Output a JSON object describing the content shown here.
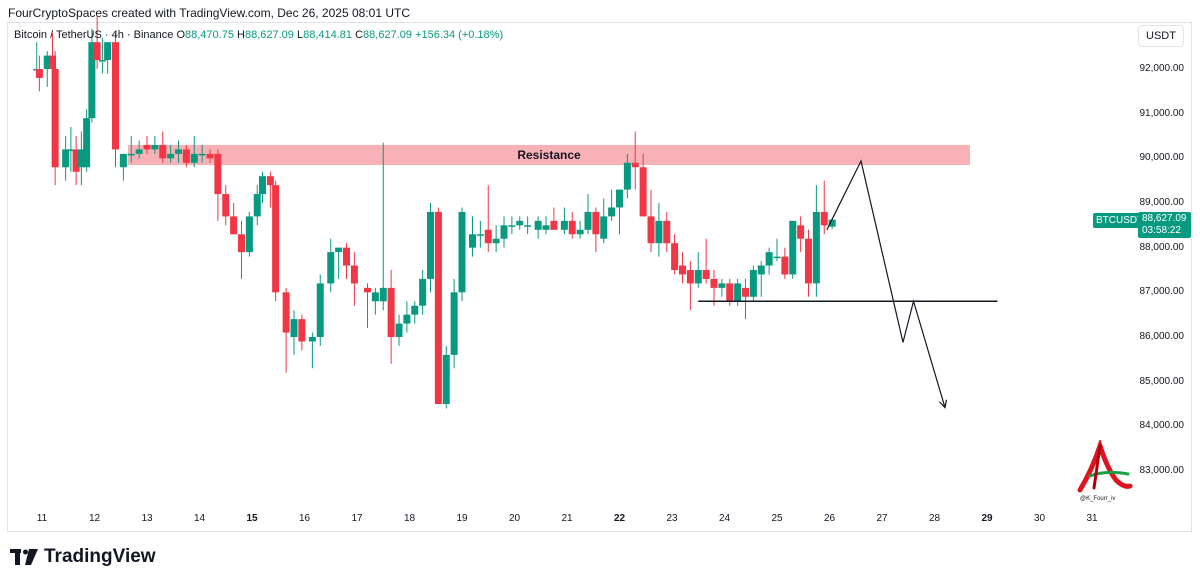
{
  "header": "FourCryptoSpaces created with TradingView.com, Dec 26, 2025 08:01 UTC",
  "legend": {
    "symbol": "Bitcoin / TetherUS · 4h · Binance",
    "open_label": "O",
    "open": "88,470.75",
    "high_label": "H",
    "high": "88,627.09",
    "low_label": "L",
    "low": "88,414.81",
    "close_label": "C",
    "close": "88,627.09",
    "change": "+156.34 (+0.18%)"
  },
  "currency": "USDT",
  "price_tag": {
    "symbol": "BTCUSDT",
    "price": "88,627.09",
    "countdown": "03:58:22"
  },
  "logo_text": "TradingView",
  "watermark_text": "@K_Fourr_iv",
  "colors": {
    "up": "#089981",
    "down": "#f23645",
    "resistance": "#f7a5aa",
    "background": "#ffffff"
  },
  "chart_data": {
    "type": "candlestick",
    "timeframe": "4h",
    "x_tick_labels": [
      "11",
      "12",
      "13",
      "14",
      "15",
      "16",
      "17",
      "18",
      "19",
      "20",
      "21",
      "22",
      "23",
      "24",
      "25",
      "26",
      "27",
      "28",
      "29",
      "30",
      "31"
    ],
    "bold_x_ticks": [
      "15",
      "22",
      "29"
    ],
    "y_tick_labels": [
      "92,000.00",
      "91,000.00",
      "90,000.00",
      "89,000.00",
      "88,000.00",
      "87,000.00",
      "86,000.00",
      "85,000.00",
      "84,000.00",
      "83,000.00"
    ],
    "y_range": [
      82400,
      93200
    ],
    "annotations": {
      "resistance_label": "Resistance",
      "resistance_zone": {
        "from": 89850,
        "to": 90300
      },
      "support_level": 86800,
      "projected_path": [
        [
          26.6,
          89940
        ],
        [
          27.4,
          85880
        ],
        [
          27.6,
          86800
        ],
        [
          28.2,
          84420
        ]
      ]
    },
    "candles": [
      {
        "d": 10.9,
        "o": 92000,
        "h": 92600,
        "l": 91900,
        "c": 92000
      },
      {
        "d": 10.95,
        "o": 92000,
        "h": 92300,
        "l": 91500,
        "c": 91800
      },
      {
        "d": 11.1,
        "o": 92000,
        "h": 92400,
        "l": 91600,
        "c": 92300
      },
      {
        "d": 11.2,
        "o": 92300,
        "h": 92800,
        "l": 91800,
        "c": 92000
      },
      {
        "d": 11.25,
        "o": 92000,
        "h": 92400,
        "l": 89400,
        "c": 89800
      },
      {
        "d": 11.45,
        "o": 89800,
        "h": 90500,
        "l": 89500,
        "c": 90200
      },
      {
        "d": 11.55,
        "o": 90200,
        "h": 90700,
        "l": 89700,
        "c": 90200
      },
      {
        "d": 11.65,
        "o": 90200,
        "h": 90500,
        "l": 89400,
        "c": 89700
      },
      {
        "d": 11.75,
        "o": 89800,
        "h": 90600,
        "l": 89400,
        "c": 90200
      },
      {
        "d": 11.85,
        "o": 89800,
        "h": 91100,
        "l": 89700,
        "c": 90900
      },
      {
        "d": 11.95,
        "o": 90900,
        "h": 92900,
        "l": 90800,
        "c": 92600
      },
      {
        "d": 12.05,
        "o": 92600,
        "h": 93200,
        "l": 92000,
        "c": 92200
      },
      {
        "d": 12.15,
        "o": 92200,
        "h": 92700,
        "l": 91900,
        "c": 92200
      },
      {
        "d": 12.25,
        "o": 92200,
        "h": 92600,
        "l": 91900,
        "c": 92600
      },
      {
        "d": 12.4,
        "o": 92600,
        "h": 92800,
        "l": 89800,
        "c": 90200
      },
      {
        "d": 12.55,
        "o": 89800,
        "h": 90100,
        "l": 89500,
        "c": 90100
      },
      {
        "d": 12.7,
        "o": 90100,
        "h": 90500,
        "l": 89900,
        "c": 90100
      },
      {
        "d": 12.85,
        "o": 90100,
        "h": 90400,
        "l": 90000,
        "c": 90200
      },
      {
        "d": 13.0,
        "o": 90300,
        "h": 90500,
        "l": 90100,
        "c": 90200
      },
      {
        "d": 13.15,
        "o": 90200,
        "h": 90500,
        "l": 90100,
        "c": 90300
      },
      {
        "d": 13.3,
        "o": 90300,
        "h": 90600,
        "l": 89900,
        "c": 90000
      },
      {
        "d": 13.45,
        "o": 90000,
        "h": 90300,
        "l": 89900,
        "c": 90100
      },
      {
        "d": 13.6,
        "o": 90100,
        "h": 90400,
        "l": 89900,
        "c": 90200
      },
      {
        "d": 13.75,
        "o": 90200,
        "h": 90300,
        "l": 89800,
        "c": 89900
      },
      {
        "d": 13.9,
        "o": 89900,
        "h": 90500,
        "l": 89800,
        "c": 90100
      },
      {
        "d": 14.05,
        "o": 90100,
        "h": 90300,
        "l": 89900,
        "c": 90100
      },
      {
        "d": 14.2,
        "o": 90100,
        "h": 90200,
        "l": 89900,
        "c": 90000
      },
      {
        "d": 14.35,
        "o": 90100,
        "h": 90200,
        "l": 88600,
        "c": 89200
      },
      {
        "d": 14.5,
        "o": 89200,
        "h": 89400,
        "l": 88500,
        "c": 88700
      },
      {
        "d": 14.65,
        "o": 88700,
        "h": 89000,
        "l": 88300,
        "c": 88300
      },
      {
        "d": 14.8,
        "o": 88300,
        "h": 88600,
        "l": 87300,
        "c": 87900
      },
      {
        "d": 14.95,
        "o": 87900,
        "h": 88800,
        "l": 87800,
        "c": 88700
      },
      {
        "d": 15.1,
        "o": 88700,
        "h": 89400,
        "l": 88500,
        "c": 89200
      },
      {
        "d": 15.2,
        "o": 89200,
        "h": 89700,
        "l": 89000,
        "c": 89600
      },
      {
        "d": 15.35,
        "o": 89600,
        "h": 89700,
        "l": 88900,
        "c": 89400
      },
      {
        "d": 15.45,
        "o": 89400,
        "h": 89500,
        "l": 86800,
        "c": 87000
      },
      {
        "d": 15.65,
        "o": 87000,
        "h": 87100,
        "l": 85200,
        "c": 86100
      },
      {
        "d": 15.8,
        "o": 86000,
        "h": 86600,
        "l": 85600,
        "c": 86400
      },
      {
        "d": 15.95,
        "o": 86400,
        "h": 86500,
        "l": 85700,
        "c": 85900
      },
      {
        "d": 16.15,
        "o": 85900,
        "h": 86100,
        "l": 85300,
        "c": 86000
      },
      {
        "d": 16.3,
        "o": 86000,
        "h": 87400,
        "l": 85800,
        "c": 87200
      },
      {
        "d": 16.5,
        "o": 87200,
        "h": 88200,
        "l": 87000,
        "c": 87900
      },
      {
        "d": 16.65,
        "o": 87900,
        "h": 88000,
        "l": 87300,
        "c": 88000
      },
      {
        "d": 16.8,
        "o": 88000,
        "h": 88100,
        "l": 87300,
        "c": 87600
      },
      {
        "d": 16.95,
        "o": 87600,
        "h": 87900,
        "l": 86700,
        "c": 87200
      },
      {
        "d": 17.2,
        "o": 87100,
        "h": 87200,
        "l": 86200,
        "c": 87000
      },
      {
        "d": 17.35,
        "o": 86800,
        "h": 87100,
        "l": 86500,
        "c": 87000
      },
      {
        "d": 17.5,
        "o": 86800,
        "h": 90350,
        "l": 86600,
        "c": 87100
      },
      {
        "d": 17.65,
        "o": 87100,
        "h": 87500,
        "l": 85400,
        "c": 86000
      },
      {
        "d": 17.8,
        "o": 86000,
        "h": 86500,
        "l": 85800,
        "c": 86300
      },
      {
        "d": 17.95,
        "o": 86300,
        "h": 86800,
        "l": 86100,
        "c": 86500
      },
      {
        "d": 18.1,
        "o": 86500,
        "h": 86800,
        "l": 86300,
        "c": 86700
      },
      {
        "d": 18.25,
        "o": 86700,
        "h": 87500,
        "l": 86500,
        "c": 87300
      },
      {
        "d": 18.4,
        "o": 87300,
        "h": 89000,
        "l": 87000,
        "c": 88800
      },
      {
        "d": 18.55,
        "o": 88800,
        "h": 88900,
        "l": 84500,
        "c": 84500
      },
      {
        "d": 18.7,
        "o": 84500,
        "h": 85800,
        "l": 84400,
        "c": 85600
      },
      {
        "d": 18.85,
        "o": 85600,
        "h": 87300,
        "l": 85300,
        "c": 87000
      },
      {
        "d": 19.0,
        "o": 87000,
        "h": 88900,
        "l": 86800,
        "c": 88800
      },
      {
        "d": 19.2,
        "o": 88000,
        "h": 88700,
        "l": 87800,
        "c": 88300
      },
      {
        "d": 19.35,
        "o": 88300,
        "h": 88600,
        "l": 88000,
        "c": 88300
      },
      {
        "d": 19.5,
        "o": 88400,
        "h": 89400,
        "l": 87900,
        "c": 88100
      },
      {
        "d": 19.65,
        "o": 88100,
        "h": 88500,
        "l": 87900,
        "c": 88200
      },
      {
        "d": 19.8,
        "o": 88200,
        "h": 88700,
        "l": 88000,
        "c": 88500
      },
      {
        "d": 19.95,
        "o": 88500,
        "h": 88700,
        "l": 88300,
        "c": 88500
      },
      {
        "d": 20.1,
        "o": 88500,
        "h": 88700,
        "l": 88400,
        "c": 88600
      },
      {
        "d": 20.25,
        "o": 88500,
        "h": 88700,
        "l": 88300,
        "c": 88500
      },
      {
        "d": 20.45,
        "o": 88400,
        "h": 88700,
        "l": 88200,
        "c": 88600
      },
      {
        "d": 20.6,
        "o": 88400,
        "h": 88700,
        "l": 88300,
        "c": 88500
      },
      {
        "d": 20.75,
        "o": 88600,
        "h": 88900,
        "l": 88400,
        "c": 88400
      },
      {
        "d": 20.95,
        "o": 88400,
        "h": 88900,
        "l": 88300,
        "c": 88600
      },
      {
        "d": 21.1,
        "o": 88600,
        "h": 88800,
        "l": 88200,
        "c": 88300
      },
      {
        "d": 21.25,
        "o": 88300,
        "h": 88600,
        "l": 88200,
        "c": 88400
      },
      {
        "d": 21.4,
        "o": 88400,
        "h": 89200,
        "l": 88300,
        "c": 88800
      },
      {
        "d": 21.55,
        "o": 88800,
        "h": 88900,
        "l": 87900,
        "c": 88300
      },
      {
        "d": 21.7,
        "o": 88200,
        "h": 89100,
        "l": 88100,
        "c": 88700
      },
      {
        "d": 21.85,
        "o": 88700,
        "h": 89300,
        "l": 88600,
        "c": 88900
      },
      {
        "d": 22.0,
        "o": 88900,
        "h": 89300,
        "l": 88300,
        "c": 89300
      },
      {
        "d": 22.15,
        "o": 89300,
        "h": 90100,
        "l": 89100,
        "c": 89900
      },
      {
        "d": 22.3,
        "o": 89900,
        "h": 90600,
        "l": 89300,
        "c": 89800
      },
      {
        "d": 22.45,
        "o": 89800,
        "h": 90100,
        "l": 88700,
        "c": 88700
      },
      {
        "d": 22.6,
        "o": 88700,
        "h": 89300,
        "l": 87900,
        "c": 88100
      },
      {
        "d": 22.75,
        "o": 88100,
        "h": 89000,
        "l": 87800,
        "c": 88600
      },
      {
        "d": 22.9,
        "o": 88600,
        "h": 88800,
        "l": 87900,
        "c": 88100
      },
      {
        "d": 23.05,
        "o": 88100,
        "h": 88300,
        "l": 87400,
        "c": 87500
      },
      {
        "d": 23.2,
        "o": 87600,
        "h": 87900,
        "l": 87200,
        "c": 87400
      },
      {
        "d": 23.35,
        "o": 87500,
        "h": 87700,
        "l": 86600,
        "c": 87200
      },
      {
        "d": 23.5,
        "o": 87200,
        "h": 87900,
        "l": 87100,
        "c": 87500
      },
      {
        "d": 23.65,
        "o": 87500,
        "h": 88200,
        "l": 87200,
        "c": 87300
      },
      {
        "d": 23.8,
        "o": 87300,
        "h": 87500,
        "l": 86700,
        "c": 87100
      },
      {
        "d": 23.95,
        "o": 87100,
        "h": 87300,
        "l": 86900,
        "c": 87200
      },
      {
        "d": 24.1,
        "o": 87200,
        "h": 87300,
        "l": 86700,
        "c": 86800
      },
      {
        "d": 24.25,
        "o": 86800,
        "h": 87300,
        "l": 86700,
        "c": 87200
      },
      {
        "d": 24.4,
        "o": 87100,
        "h": 87300,
        "l": 86400,
        "c": 86900
      },
      {
        "d": 24.55,
        "o": 86900,
        "h": 87600,
        "l": 86800,
        "c": 87500
      },
      {
        "d": 24.7,
        "o": 87400,
        "h": 87700,
        "l": 86900,
        "c": 87600
      },
      {
        "d": 24.85,
        "o": 87600,
        "h": 88000,
        "l": 87400,
        "c": 87900
      },
      {
        "d": 25.0,
        "o": 87800,
        "h": 88200,
        "l": 87700,
        "c": 87800
      },
      {
        "d": 25.15,
        "o": 87800,
        "h": 88000,
        "l": 87300,
        "c": 87400
      },
      {
        "d": 25.3,
        "o": 87400,
        "h": 88600,
        "l": 87300,
        "c": 88600
      },
      {
        "d": 25.45,
        "o": 88500,
        "h": 88700,
        "l": 87900,
        "c": 88200
      },
      {
        "d": 25.6,
        "o": 88200,
        "h": 88400,
        "l": 86900,
        "c": 87200
      },
      {
        "d": 25.75,
        "o": 87200,
        "h": 89400,
        "l": 86900,
        "c": 88800
      },
      {
        "d": 25.9,
        "o": 88800,
        "h": 89500,
        "l": 88300,
        "c": 88500
      },
      {
        "d": 26.05,
        "o": 88470.75,
        "h": 88627.09,
        "l": 88414.81,
        "c": 88627.09
      }
    ]
  }
}
